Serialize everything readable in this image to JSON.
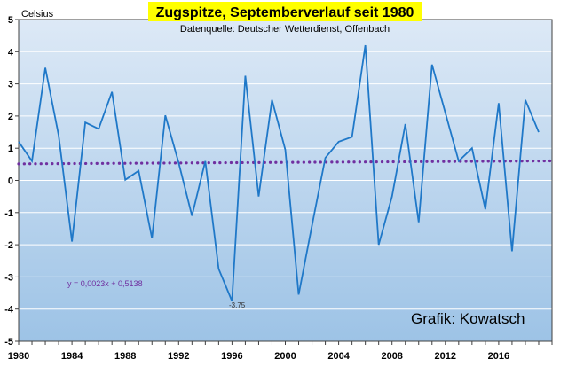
{
  "chart_data": {
    "type": "line",
    "title": "Zugspitze, Septemberverlauf seit 1980",
    "subtitle": "Datenquelle: Deutscher Wetterdienst, Offenbach",
    "ylabel": "Celsius",
    "credit": "Grafik: Kowatsch",
    "xlim": [
      1980,
      2020
    ],
    "ylim": [
      -5,
      5
    ],
    "x_ticks": [
      1980,
      1984,
      1988,
      1992,
      1996,
      2000,
      2004,
      2008,
      2012,
      2016
    ],
    "y_ticks": [
      -5,
      -4,
      -3,
      -2,
      -1,
      0,
      1,
      2,
      3,
      4,
      5
    ],
    "grid": true,
    "legend": "none",
    "colors": {
      "background_top": "#dde9f6",
      "background_bottom": "#9dc3e6",
      "series": "#1f78c8",
      "trend": "#7030a0",
      "title_highlight": "#ffff00"
    },
    "series": [
      {
        "x": [
          1980,
          1981,
          1982,
          1983,
          1984,
          1985,
          1986,
          1987,
          1988,
          1989,
          1990,
          1991,
          1992,
          1993,
          1994,
          1995,
          1996,
          1997,
          1998,
          1999,
          2000,
          2001,
          2002,
          2003,
          2004,
          2005,
          2006,
          2007,
          2008,
          2009,
          2010,
          2011,
          2012,
          2013,
          2014,
          2015,
          2016,
          2017,
          2018,
          2019
        ],
        "y": [
          1.2,
          0.6,
          3.5,
          1.4,
          -1.9,
          1.8,
          1.6,
          2.75,
          0.02,
          0.3,
          -1.8,
          2.02,
          0.55,
          -1.1,
          0.6,
          -2.75,
          -3.75,
          3.25,
          -0.5,
          2.5,
          0.95,
          -3.55,
          -1.4,
          0.7,
          1.2,
          1.35,
          4.2,
          -2.0,
          -0.5,
          1.75,
          -1.3,
          3.6,
          2.1,
          0.6,
          1.0,
          -0.9,
          2.4,
          -2.2,
          2.5,
          1.5
        ]
      }
    ],
    "trendline": {
      "equation": "y = 0,0023x + 0,5138",
      "slope": 0.0023,
      "intercept": 0.5138,
      "style": "dotted"
    },
    "annotations": [
      {
        "text": "-3,75",
        "x": 1996,
        "y": -3.75
      }
    ]
  }
}
